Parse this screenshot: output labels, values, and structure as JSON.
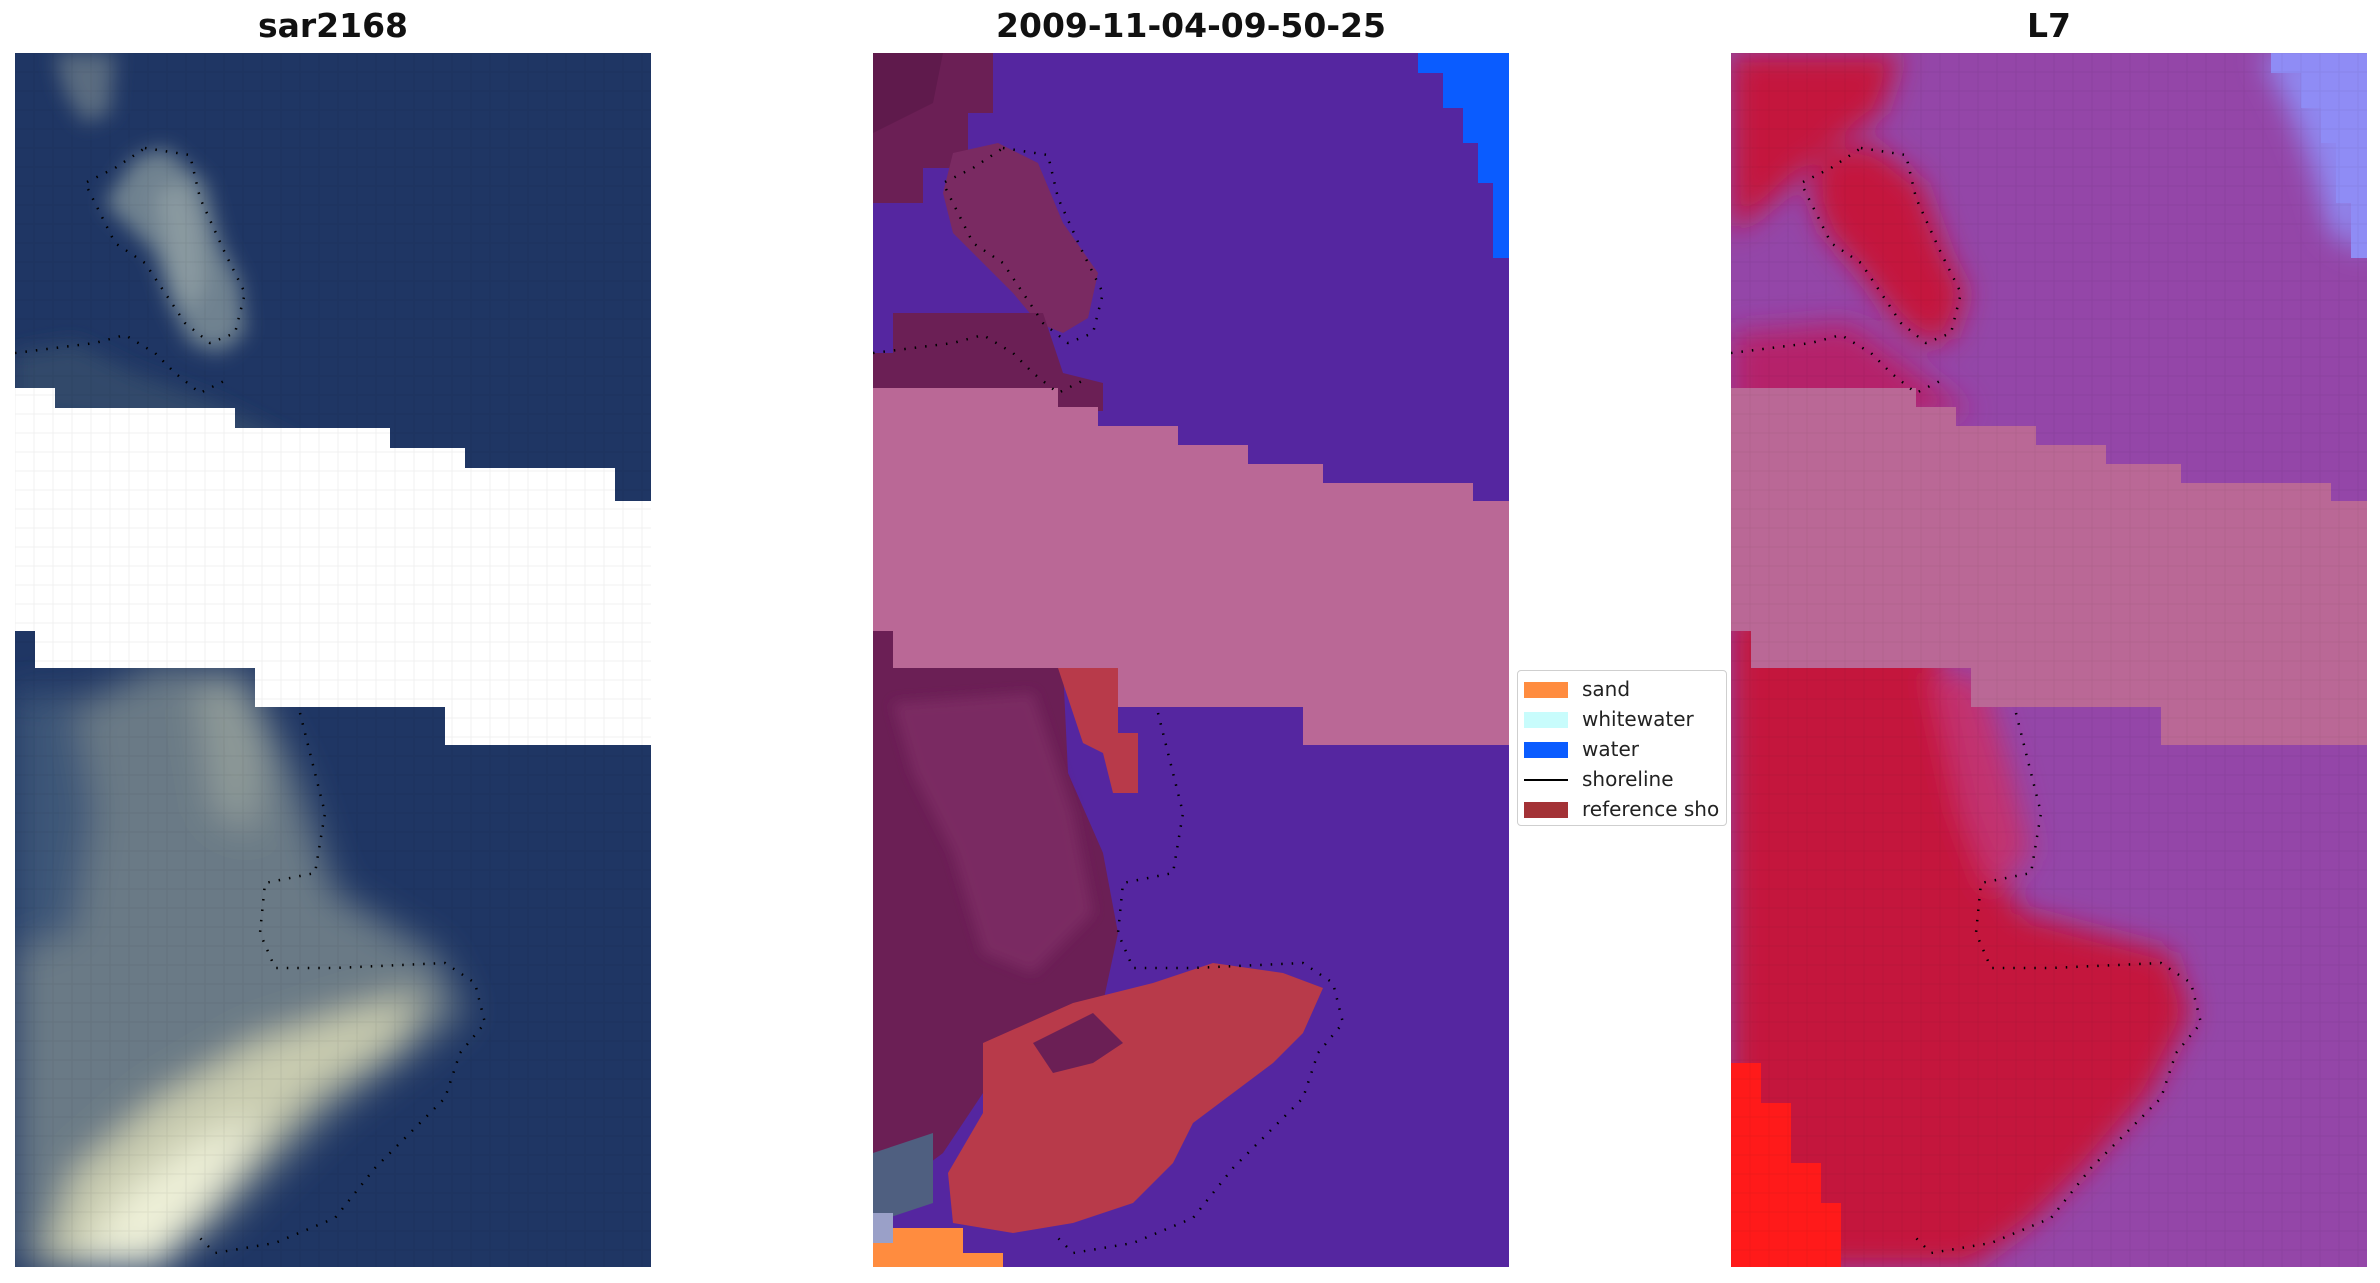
{
  "panels": [
    {
      "title": "sar2168"
    },
    {
      "title": "2009-11-04-09-50-25"
    },
    {
      "title": "L7"
    }
  ],
  "legend": {
    "items": [
      {
        "label": "sand",
        "color": "#ff8c3f",
        "kind": "patch"
      },
      {
        "label": "whitewater",
        "color": "#c8fcfc",
        "kind": "patch"
      },
      {
        "label": "water",
        "color": "#0a5cff",
        "kind": "patch"
      },
      {
        "label": "shoreline",
        "color": "#000000",
        "kind": "line"
      },
      {
        "label": "reference sho",
        "color": "#a33236",
        "kind": "patch"
      }
    ]
  },
  "colors": {
    "satellite_water": "#1f3664",
    "classified_water": "#5526a0",
    "classified_land": "#6b1f55",
    "classified_sand_red": "#b83a4a",
    "nodata_band": "#ba6896",
    "l7_land": "#c4123c",
    "l7_water": "#9446a8"
  }
}
